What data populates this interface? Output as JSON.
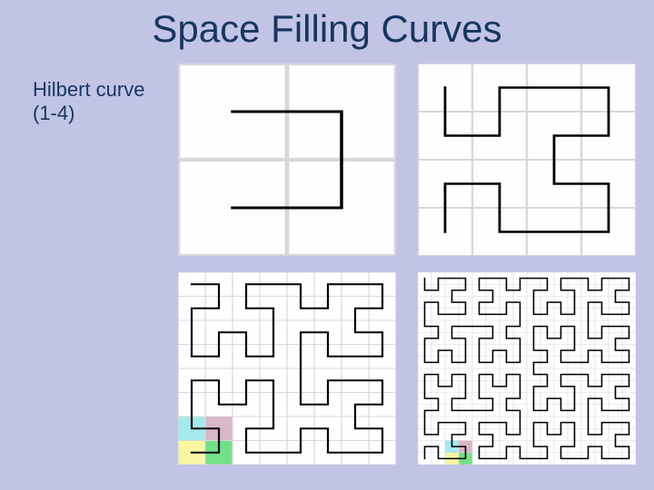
{
  "title": "Space Filling Curves",
  "label_line1": "Hilbert curve",
  "label_line2": "(1-4)",
  "background_color": "#c2c4e6",
  "text_color": "#17365f",
  "panel_bg": "#fefefe",
  "grid_color": "#d8d8d8",
  "curve_color": "#000000",
  "levels": [
    1,
    2,
    3,
    4
  ],
  "curve_stroke": [
    3.5,
    2.8,
    2.2,
    1.6
  ],
  "highlight_colors": {
    "cyan": "#a4eaec",
    "pink": "#d9b6c8",
    "yellow": "#f9f6a2",
    "green": "#73e089"
  },
  "highlights_panel3": [
    {
      "col": 1,
      "row": 7,
      "key": "cyan"
    },
    {
      "col": 2,
      "row": 7,
      "key": "pink"
    },
    {
      "col": 1,
      "row": 8,
      "key": "yellow"
    },
    {
      "col": 2,
      "row": 8,
      "key": "green"
    }
  ],
  "highlights_panel4": [
    {
      "col": 3,
      "row": 15,
      "key": "cyan"
    },
    {
      "col": 4,
      "row": 15,
      "key": "pink"
    },
    {
      "col": 3,
      "row": 16,
      "key": "yellow"
    },
    {
      "col": 4,
      "row": 16,
      "key": "green"
    }
  ]
}
